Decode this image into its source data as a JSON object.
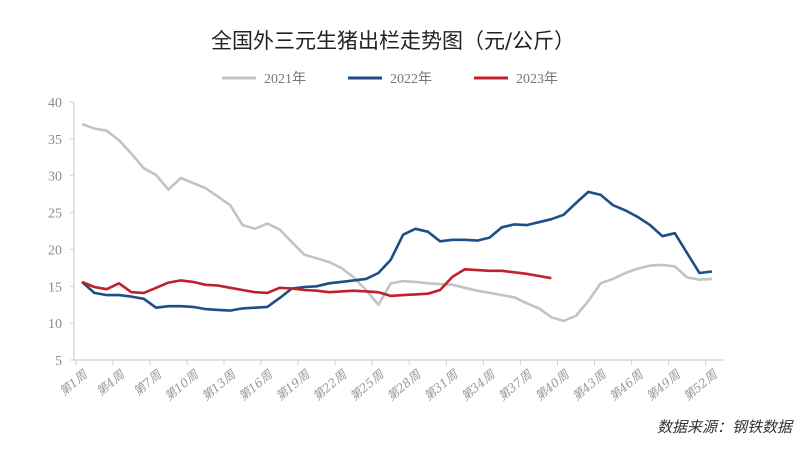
{
  "chart_data": {
    "type": "line",
    "title": "全国外三元生猪出栏走势图（元/公斤）",
    "source": "数据来源：钢铁数据",
    "xlabel": "",
    "ylabel": "",
    "ylim": [
      5,
      40
    ],
    "yticks": [
      5,
      10,
      15,
      20,
      25,
      30,
      35,
      40
    ],
    "xtick_labels": [
      "第1周",
      "第4周",
      "第7周",
      "第10周",
      "第13周",
      "第16周",
      "第19周",
      "第22周",
      "第25周",
      "第28周",
      "第31周",
      "第34周",
      "第37周",
      "第40周",
      "第43周",
      "第46周",
      "第49周",
      "第52周"
    ],
    "grid": false,
    "legend_position": "top",
    "series": [
      {
        "name": "2021年",
        "color": "#c3c3c3",
        "values": [
          37.0,
          36.4,
          36.1,
          34.8,
          33.0,
          31.0,
          30.1,
          28.1,
          29.7,
          29.0,
          28.3,
          27.2,
          26.0,
          23.3,
          22.8,
          23.5,
          22.7,
          21.0,
          19.3,
          18.8,
          18.3,
          17.5,
          16.2,
          14.5,
          12.5,
          15.4,
          15.7,
          15.6,
          15.4,
          15.3,
          15.2,
          14.8,
          14.4,
          14.1,
          13.8,
          13.5,
          12.7,
          12.0,
          10.8,
          10.3,
          11.0,
          13.0,
          15.4,
          16.0,
          16.8,
          17.4,
          17.8,
          17.9,
          17.7,
          16.2,
          15.9,
          16.0
        ]
      },
      {
        "name": "2022年",
        "color": "#1f4e87",
        "values": [
          15.6,
          14.1,
          13.8,
          13.8,
          13.6,
          13.3,
          12.1,
          12.3,
          12.3,
          12.2,
          11.9,
          11.8,
          11.7,
          12.0,
          12.1,
          12.2,
          13.4,
          14.7,
          14.9,
          15.0,
          15.4,
          15.6,
          15.8,
          16.0,
          16.8,
          18.6,
          22.0,
          22.8,
          22.4,
          21.1,
          21.3,
          21.3,
          21.2,
          21.6,
          23.0,
          23.4,
          23.3,
          23.7,
          24.1,
          24.7,
          26.3,
          27.8,
          27.4,
          26.0,
          25.3,
          24.4,
          23.3,
          21.8,
          22.2,
          19.5,
          16.8,
          17.0
        ]
      },
      {
        "name": "2023年",
        "color": "#c0202a",
        "values": [
          15.6,
          14.9,
          14.6,
          15.4,
          14.2,
          14.1,
          14.8,
          15.5,
          15.8,
          15.6,
          15.2,
          15.1,
          14.8,
          14.5,
          14.2,
          14.1,
          14.8,
          14.7,
          14.5,
          14.4,
          14.2,
          14.3,
          14.4,
          14.3,
          14.2,
          13.7,
          13.8,
          13.9,
          14.0,
          14.5,
          16.3,
          17.3,
          17.2,
          17.1,
          17.1,
          16.9,
          16.7,
          16.4,
          16.1
        ]
      }
    ]
  }
}
